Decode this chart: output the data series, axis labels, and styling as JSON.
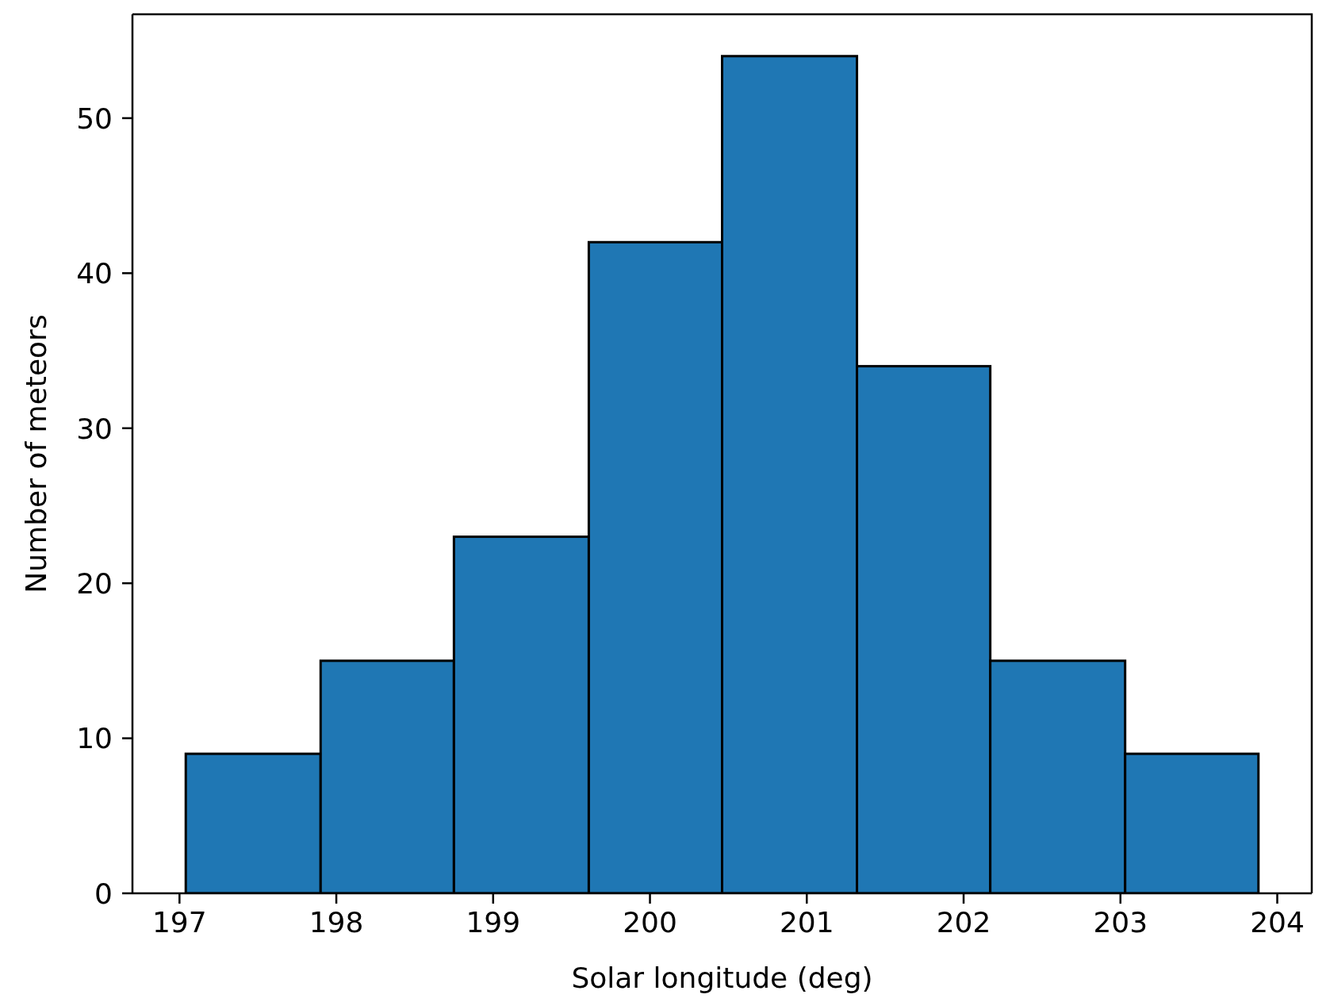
{
  "chart_data": {
    "type": "histogram",
    "xlabel": "Solar longitude (deg)",
    "ylabel": "Number of meteors",
    "bins": [
      197.04,
      197.9,
      198.75,
      199.61,
      200.46,
      201.32,
      202.17,
      203.03,
      203.88
    ],
    "values": [
      9,
      15,
      23,
      42,
      54,
      34,
      15,
      9
    ],
    "color": "#1f77b4",
    "xlim": [
      196.7,
      204.22
    ],
    "ylim": [
      0,
      56.7
    ],
    "xticks": [
      197,
      198,
      199,
      200,
      201,
      202,
      203,
      204
    ],
    "yticks": [
      0,
      10,
      20,
      30,
      40,
      50
    ]
  }
}
